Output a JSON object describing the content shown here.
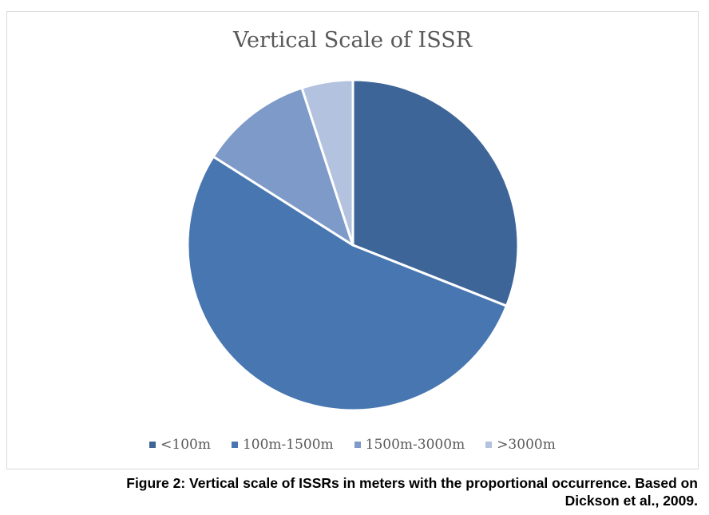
{
  "chart_data": {
    "type": "pie",
    "title": "Vertical Scale of ISSR",
    "categories": [
      "<100m",
      "100m-1500m",
      "1500m-3000m",
      ">3000m"
    ],
    "values": [
      31,
      53,
      11,
      5
    ],
    "unit": "percent",
    "colors": [
      "#3e6598",
      "#4876b1",
      "#7d9ac8",
      "#b3c2de"
    ],
    "start_angle_deg": 0,
    "direction": "clockwise",
    "legend": "bottom"
  },
  "caption": {
    "line1": "Figure 2: Vertical scale of ISSRs in meters with the proportional occurrence. Based on",
    "line2": "Dickson et al., 2009."
  }
}
